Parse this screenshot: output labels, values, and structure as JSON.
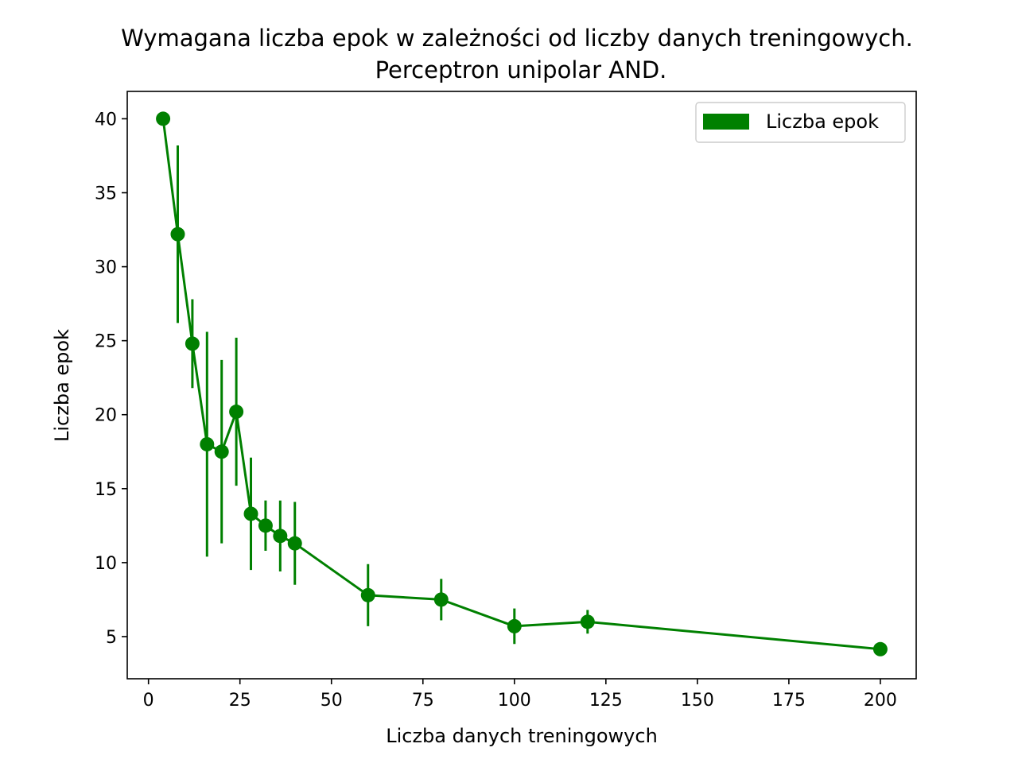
{
  "chart_data": {
    "type": "line",
    "title_line1": "Wymagana liczba epok w zależności od liczby danych treningowych.",
    "title_line2": "Perceptron unipolar AND.",
    "xlabel": "Liczba danych treningowych",
    "ylabel": "Liczba epok",
    "xlim": [
      -5.8,
      209.8
    ],
    "ylim": [
      2.15,
      41.85
    ],
    "xticks": [
      0,
      25,
      50,
      75,
      100,
      125,
      150,
      175,
      200
    ],
    "yticks": [
      5,
      10,
      15,
      20,
      25,
      30,
      35,
      40
    ],
    "legend_position": "top-right",
    "grid": false,
    "color": "#008000",
    "series": [
      {
        "name": "Liczba epok",
        "x": [
          4,
          8,
          12,
          16,
          20,
          24,
          28,
          32,
          36,
          40,
          60,
          80,
          100,
          120,
          200
        ],
        "y": [
          40.0,
          32.2,
          24.8,
          18.0,
          17.5,
          20.2,
          13.3,
          12.5,
          11.8,
          11.3,
          7.8,
          7.5,
          5.7,
          6.0,
          4.15
        ],
        "yerr": [
          0.0,
          6.0,
          3.0,
          7.6,
          6.2,
          5.0,
          3.8,
          1.7,
          2.4,
          2.8,
          2.1,
          1.4,
          1.2,
          0.8,
          0.0
        ]
      }
    ]
  }
}
